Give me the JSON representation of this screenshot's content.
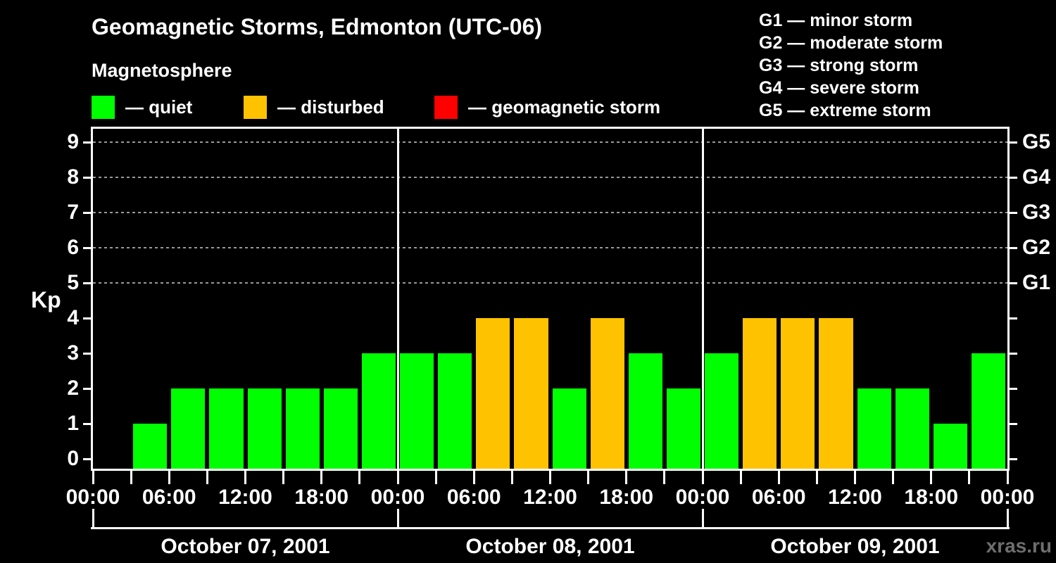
{
  "title": "Geomagnetic Storms, Edmonton (UTC-06)",
  "subtitle": "Magnetosphere",
  "watermark": "xras.ru",
  "colors": {
    "background": "#000000",
    "axis": "#ffffff",
    "text": "#ffffff",
    "grid": "#999999",
    "watermark": "#6e6e6e",
    "quiet": "#00ff00",
    "disturbed": "#ffc200",
    "storm": "#ff0000"
  },
  "legend": [
    {
      "key": "quiet",
      "label": "— quiet"
    },
    {
      "key": "disturbed",
      "label": "— disturbed"
    },
    {
      "key": "storm",
      "label": "— geomagnetic storm"
    }
  ],
  "g_scale_legend": [
    "G1 — minor storm",
    "G2 — moderate storm",
    "G3 — strong storm",
    "G4 — severe storm",
    "G5 — extreme storm"
  ],
  "chart_data": {
    "type": "bar",
    "title": "Geomagnetic Storms, Edmonton (UTC-06)",
    "subtitle": "Magnetosphere",
    "ylabel": "Kp",
    "ylim": [
      0,
      9
    ],
    "y_ticks": [
      0,
      1,
      2,
      3,
      4,
      5,
      6,
      7,
      8,
      9
    ],
    "grid_dashed_at_kp": [
      5,
      6,
      7,
      8,
      9
    ],
    "right_axis_labels": [
      {
        "label": "G1",
        "kp": 5
      },
      {
        "label": "G2",
        "kp": 6
      },
      {
        "label": "G3",
        "kp": 7
      },
      {
        "label": "G4",
        "kp": 8
      },
      {
        "label": "G5",
        "kp": 9
      }
    ],
    "bar_interval_hours": 3,
    "x_tick_labels": [
      "00:00",
      "06:00",
      "12:00",
      "18:00",
      "00:00",
      "06:00",
      "12:00",
      "18:00",
      "00:00",
      "06:00",
      "12:00",
      "18:00",
      "00:00"
    ],
    "color_rule": {
      "quiet_max_kp": 3,
      "disturbed_kp": 4,
      "storm_min_kp": 5
    },
    "days": [
      {
        "date": "October 07, 2001",
        "kp": [
          0,
          1,
          2,
          2,
          2,
          2,
          2,
          3
        ]
      },
      {
        "date": "October 08, 2001",
        "kp": [
          3,
          3,
          4,
          4,
          2,
          4,
          3,
          2
        ]
      },
      {
        "date": "October 09, 2001",
        "kp": [
          3,
          4,
          4,
          4,
          2,
          2,
          1,
          3
        ]
      }
    ],
    "legend_position": "top"
  }
}
